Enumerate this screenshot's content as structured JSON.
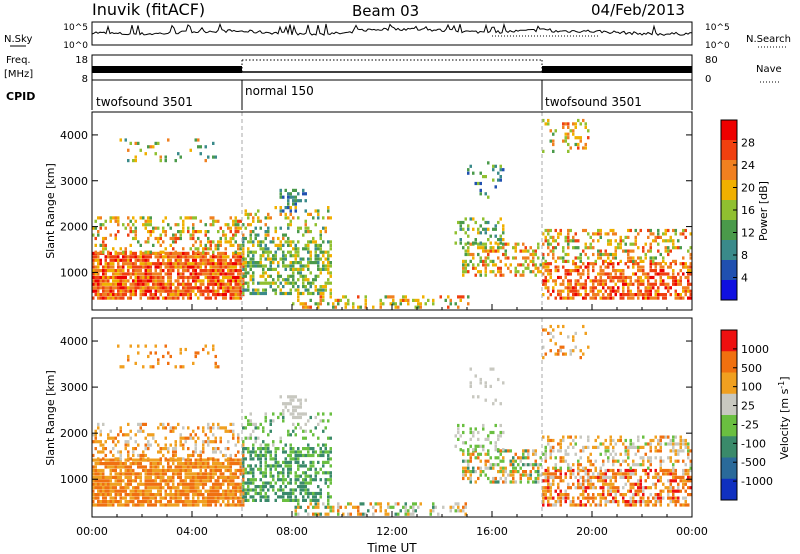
{
  "header": {
    "station": "Inuvik (fitACF)",
    "beam": "Beam 03",
    "date": "04/Feb/2013"
  },
  "panel_labels": {
    "nsky": "N.Sky",
    "freq": "Freq.",
    "mhz": "[MHz]",
    "cpid": "CPID",
    "nsearch": "N.Search",
    "nave": "Nave"
  },
  "noise_axis": {
    "top": "10^5",
    "bottom": "10^0",
    "right_top": "10^5",
    "right_bottom": "10^0"
  },
  "freq_axis": {
    "top": "18",
    "bottom": "8",
    "right_top": "80",
    "right_bottom": "0"
  },
  "cpid_segments": [
    {
      "label": "twofsound 3501",
      "start": 0,
      "end": 6
    },
    {
      "label": "normal 150",
      "start": 6,
      "end": 18
    },
    {
      "label": "twofsound 3501",
      "start": 18,
      "end": 24
    }
  ],
  "chart_data": [
    {
      "type": "heatmap",
      "title": "",
      "ylabel": "Slant Range [km]",
      "ylim": [
        180,
        4500
      ],
      "y_ticks": [
        1000,
        2000,
        3000,
        4000
      ],
      "colorbar": {
        "label": "Power [dB]",
        "ticks": [
          "4",
          "8",
          "12",
          "16",
          "20",
          "24",
          "28"
        ]
      },
      "color_scale": [
        "#1010e0",
        "#2050b0",
        "#3a8a8a",
        "#4a9a4a",
        "#90c030",
        "#f0b000",
        "#f08020",
        "#f04010",
        "#ee0000"
      ]
    },
    {
      "type": "heatmap",
      "title": "",
      "xlabel": "Time UT",
      "ylabel": "Slant Range [km]",
      "ylim": [
        180,
        4500
      ],
      "y_ticks": [
        1000,
        2000,
        3000,
        4000
      ],
      "x_ticks": [
        "00:00",
        "04:00",
        "08:00",
        "12:00",
        "16:00",
        "20:00",
        "00:00"
      ],
      "colorbar": {
        "label": "Velocity [m s^-1]",
        "ticks": [
          "1000",
          "500",
          "100",
          "25",
          "-25",
          "-100",
          "-500",
          "-1000"
        ]
      },
      "color_scale": [
        "#1030c0",
        "#2a6a9a",
        "#3a8a6a",
        "#6abf40",
        "#c8c8c0",
        "#f0a020",
        "#f07010",
        "#ee1010"
      ]
    }
  ]
}
